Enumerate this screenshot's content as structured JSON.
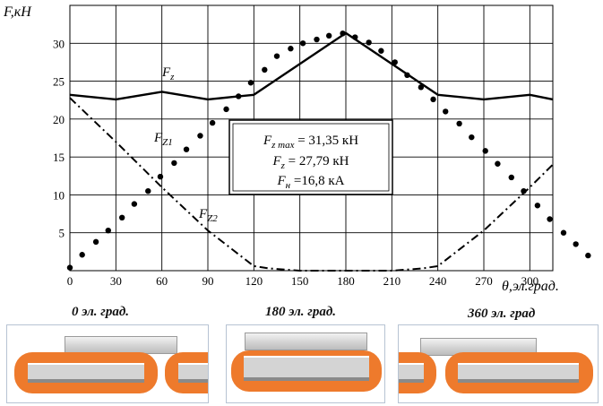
{
  "chart_data": {
    "type": "line",
    "ylabel": "F,кН",
    "xlabel": "θ,эл.град.",
    "xlim": [
      0,
      315
    ],
    "ylim": [
      0,
      35
    ],
    "xticks": [
      0,
      30,
      60,
      90,
      120,
      150,
      180,
      210,
      240,
      270,
      300
    ],
    "yticks": [
      5,
      10,
      15,
      20,
      25,
      30
    ],
    "grid": true,
    "series": [
      {
        "name": "Fz",
        "style": "solid",
        "x": [
          0,
          30,
          60,
          90,
          120,
          180,
          240,
          270,
          300,
          315
        ],
        "y": [
          23.2,
          22.6,
          23.6,
          22.6,
          23.2,
          31.35,
          23.2,
          22.6,
          23.2,
          22.6
        ]
      },
      {
        "name": "Fz1",
        "style": "dots",
        "x": [
          0,
          8,
          17,
          25,
          34,
          42,
          51,
          59,
          68,
          76,
          85,
          93,
          102,
          110,
          118,
          127,
          135,
          144,
          152,
          161,
          169,
          178,
          186,
          195,
          203,
          212,
          220,
          229,
          237,
          245,
          254,
          262,
          271,
          279,
          288,
          296,
          305,
          313,
          322,
          330,
          338
        ],
        "y": [
          0.4,
          2.1,
          3.8,
          5.3,
          7.0,
          8.8,
          10.5,
          12.4,
          14.2,
          16.0,
          17.8,
          19.5,
          21.3,
          23.0,
          24.8,
          26.5,
          28.3,
          29.3,
          30.0,
          30.5,
          31.0,
          31.3,
          30.8,
          30.1,
          29.0,
          27.5,
          25.8,
          24.2,
          22.6,
          21.0,
          19.4,
          17.6,
          15.8,
          14.1,
          12.3,
          10.5,
          8.6,
          6.8,
          5.0,
          3.5,
          2.0
        ]
      },
      {
        "name": "Fz2",
        "style": "dash-dot",
        "x": [
          0,
          30,
          60,
          90,
          120,
          130,
          150,
          180,
          210,
          230,
          240,
          270,
          300,
          315
        ],
        "y": [
          22.8,
          17.0,
          11.0,
          5.3,
          0.6,
          0.3,
          0.0,
          0.0,
          0.0,
          0.3,
          0.6,
          5.3,
          11.0,
          14.0
        ]
      }
    ],
    "series_labels": {
      "fz": "F",
      "fz_sub": "z",
      "fz1": "F",
      "fz1_sub": "Z1",
      "fz2": "F",
      "fz2_sub": "Z2"
    },
    "annotation": {
      "line1_main": "F",
      "line1_sub": "z max",
      "line1_rest": " = 31,35 кН",
      "line2_main": "F",
      "line2_sub": "z",
      "line2_rest": " = 27,79 кН",
      "line3_main": "F",
      "line3_sub": "н",
      "line3_rest": " =16,8 кА"
    }
  },
  "panels": [
    {
      "caption": "0 эл. град."
    },
    {
      "caption": "180 эл. град."
    },
    {
      "caption": "360 эл. град"
    }
  ],
  "colors": {
    "coil": "#ee7a2c",
    "grid": "#000000",
    "line": "#000000"
  }
}
